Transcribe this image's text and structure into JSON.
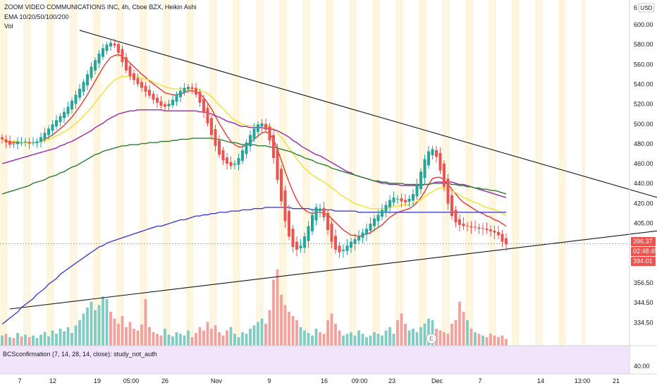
{
  "header": {
    "title": "ZOOM VIDEO COMMUNICATIONS INC, 4h, Cboe BZX, Heikin Ashi",
    "ema_label": "EMA 10/20/50/100/200",
    "vol_label": "Vol"
  },
  "indicator_panel": {
    "label": "BCSconfirmation (7, 14, 28, 14, close): study_not_auth",
    "axis_value": "40.00"
  },
  "event_marker": "E",
  "price_tags": [
    {
      "label": "396.37",
      "color": "#ef5350"
    },
    {
      "label": "02:48:45",
      "color": "#ef5350"
    },
    {
      "label": "394.01",
      "color": "#ef5350"
    }
  ],
  "colors": {
    "up": "#26a69a",
    "down": "#ef5350",
    "vol_up": "#80cbc4",
    "vol_down": "#f4a09c",
    "ema10": "#e53935",
    "ema20": "#f5e12a",
    "ema50": "#9c27b0",
    "ema100": "#2e7d32",
    "ema200": "#3f3fd9",
    "session_bg": "#fff4dc",
    "indicator_bg": "#f1e4fb"
  },
  "chart_data": {
    "type": "candlestick",
    "title": "ZOOM VIDEO COMMUNICATIONS INC, 4h, Cboe BZX, Heikin Ashi",
    "y_axis": {
      "scale": "log",
      "range": [
        334.5,
        616
      ],
      "tick_labels": [
        "600.00",
        "580.00",
        "560.00",
        "540.00",
        "520.00",
        "500.00",
        "480.00",
        "460.00",
        "440.00",
        "420.00",
        "405.00",
        "380.00",
        "368.50",
        "356.50",
        "344.50",
        "334.50"
      ],
      "top_cut_label": "6",
      "currency": "USD"
    },
    "x_axis": {
      "tick_labels": [
        "7",
        "12",
        "19",
        "05:00",
        "26",
        "Nov",
        "9",
        "16",
        "09:00",
        "23",
        "Dec",
        "7",
        "14",
        "13:00",
        "21"
      ]
    },
    "price_series": {
      "close": [
        484,
        481,
        479,
        480,
        482,
        481,
        482,
        480,
        481,
        482,
        486,
        490,
        494,
        498,
        502,
        506,
        510,
        515,
        521,
        527,
        533,
        540,
        548,
        556,
        563,
        570,
        576,
        580,
        582,
        579,
        571,
        561,
        552,
        546,
        542,
        538,
        534,
        530,
        526,
        522,
        519,
        516,
        515,
        518,
        522,
        527,
        531,
        534,
        535,
        533,
        527,
        519,
        509,
        499,
        488,
        478,
        470,
        465,
        462,
        460,
        462,
        467,
        474,
        481,
        488,
        494,
        498,
        499,
        493,
        483,
        467,
        448,
        430,
        414,
        402,
        394,
        392,
        395,
        402,
        410,
        419,
        425,
        424,
        417,
        407,
        398,
        392,
        390,
        392,
        395,
        398,
        400,
        402,
        405,
        408,
        412,
        416,
        419,
        423,
        427,
        431,
        433,
        432,
        430,
        429,
        432,
        436,
        444,
        455,
        466,
        473,
        475,
        468,
        456,
        442,
        428,
        418,
        413,
        411,
        410,
        410,
        409,
        409,
        408,
        408,
        407,
        406,
        405,
        403,
        398,
        396
      ],
      "last": 396.37
    },
    "series": [
      {
        "name": "EMA 10",
        "color": "#e53935",
        "values": [
          484,
          483,
          481,
          481,
          481,
          481,
          481,
          481,
          481,
          481,
          482,
          484,
          486,
          488,
          491,
          494,
          497,
          501,
          505,
          510,
          515,
          521,
          527,
          534,
          541,
          548,
          555,
          561,
          566,
          568,
          569,
          567,
          564,
          560,
          556,
          552,
          548,
          545,
          541,
          538,
          535,
          532,
          529,
          528,
          527,
          527,
          528,
          529,
          531,
          531,
          530,
          528,
          524,
          519,
          513,
          506,
          499,
          493,
          487,
          482,
          479,
          477,
          477,
          479,
          481,
          484,
          487,
          490,
          491,
          489,
          484,
          475,
          465,
          455,
          446,
          438,
          431,
          426,
          423,
          421,
          420,
          421,
          421,
          420,
          419,
          416,
          413,
          410,
          407,
          405,
          403,
          403,
          402,
          403,
          404,
          405,
          407,
          409,
          411,
          414,
          417,
          419,
          421,
          422,
          423,
          424,
          426,
          429,
          433,
          438,
          444,
          449,
          450,
          450,
          448,
          444,
          440,
          436,
          432,
          429,
          427,
          425,
          423,
          421,
          420,
          418,
          417,
          415,
          414,
          412,
          410
        ]
      },
      {
        "name": "EMA 20",
        "color": "#f5e12a",
        "values": [
          484,
          483,
          482,
          482,
          482,
          481,
          481,
          481,
          481,
          481,
          482,
          483,
          484,
          485,
          487,
          489,
          491,
          493,
          496,
          499,
          502,
          506,
          510,
          514,
          519,
          524,
          529,
          534,
          538,
          542,
          544,
          546,
          546,
          546,
          546,
          545,
          544,
          543,
          542,
          540,
          538,
          537,
          535,
          534,
          533,
          533,
          533,
          533,
          533,
          533,
          533,
          532,
          530,
          528,
          525,
          521,
          517,
          513,
          509,
          505,
          502,
          500,
          498,
          497,
          497,
          497,
          497,
          497,
          497,
          496,
          494,
          490,
          486,
          481,
          476,
          471,
          466,
          462,
          458,
          455,
          452,
          450,
          448,
          446,
          444,
          441,
          439,
          436,
          434,
          432,
          430,
          428,
          427,
          426,
          425,
          424,
          424,
          424,
          424,
          424,
          425,
          426,
          426,
          427,
          427,
          427,
          428,
          430,
          431,
          434,
          436,
          438,
          440,
          441,
          441,
          440,
          439,
          437,
          435,
          433,
          432,
          430,
          429,
          428,
          426,
          425,
          424,
          423,
          422,
          420,
          418
        ]
      },
      {
        "name": "EMA 50",
        "color": "#9c27b0",
        "values": [
          462,
          463,
          464,
          465,
          466,
          467,
          468,
          469,
          470,
          471,
          472,
          473,
          474,
          475,
          476,
          478,
          479,
          481,
          482,
          484,
          486,
          488,
          490,
          492,
          495,
          497,
          499,
          502,
          504,
          506,
          508,
          509,
          510,
          511,
          511,
          512,
          512,
          512,
          512,
          512,
          512,
          512,
          511,
          511,
          511,
          511,
          511,
          511,
          511,
          511,
          511,
          510,
          510,
          509,
          508,
          506,
          505,
          503,
          501,
          500,
          499,
          497,
          496,
          496,
          495,
          495,
          495,
          495,
          494,
          494,
          493,
          492,
          490,
          488,
          486,
          483,
          481,
          478,
          476,
          474,
          472,
          470,
          469,
          467,
          465,
          463,
          461,
          459,
          457,
          455,
          454,
          452,
          451,
          450,
          449,
          448,
          447,
          446,
          445,
          445,
          444,
          444,
          444,
          443,
          443,
          443,
          443,
          443,
          443,
          444,
          444,
          445,
          446,
          446,
          446,
          446,
          446,
          445,
          444,
          444,
          443,
          442,
          441,
          440,
          439,
          438,
          437,
          436,
          435,
          434,
          433
        ]
      },
      {
        "name": "EMA 100",
        "color": "#2e7d32",
        "values": [
          436,
          437,
          438,
          439,
          440,
          441,
          442,
          443,
          445,
          446,
          447,
          448,
          450,
          451,
          452,
          454,
          455,
          457,
          459,
          460,
          462,
          464,
          466,
          468,
          470,
          471,
          473,
          474,
          475,
          476,
          477,
          478,
          478,
          479,
          479,
          479,
          480,
          480,
          481,
          481,
          481,
          482,
          482,
          482,
          483,
          483,
          484,
          484,
          484,
          485,
          485,
          485,
          485,
          485,
          485,
          484,
          484,
          483,
          482,
          481,
          481,
          480,
          479,
          479,
          479,
          479,
          478,
          478,
          478,
          477,
          477,
          476,
          475,
          474,
          473,
          472,
          470,
          469,
          467,
          466,
          465,
          463,
          462,
          461,
          460,
          458,
          457,
          456,
          455,
          454,
          453,
          452,
          451,
          450,
          449,
          448,
          447,
          447,
          446,
          446,
          445,
          445,
          445,
          445,
          444,
          444,
          444,
          444,
          444,
          444,
          444,
          445,
          445,
          445,
          445,
          445,
          444,
          444,
          443,
          443,
          442,
          442,
          441,
          441,
          440,
          440,
          439,
          439,
          438,
          437,
          436
        ]
      },
      {
        "name": "EMA 200",
        "color": "#3f3fd9",
        "values": [
          340,
          342,
          344,
          346,
          348,
          351,
          353,
          355,
          357,
          360,
          362,
          364,
          367,
          369,
          371,
          374,
          376,
          378,
          380,
          382,
          384,
          386,
          388,
          390,
          392,
          394,
          395,
          397,
          398,
          399,
          400,
          401,
          402,
          403,
          404,
          405,
          406,
          407,
          408,
          409,
          410,
          410,
          411,
          412,
          413,
          414,
          415,
          415,
          416,
          417,
          418,
          418,
          419,
          419,
          420,
          420,
          421,
          421,
          421,
          422,
          422,
          422,
          423,
          423,
          423,
          424,
          424,
          424,
          425,
          425,
          425,
          425,
          425,
          425,
          425,
          424,
          424,
          424,
          424,
          424,
          423,
          423,
          423,
          423,
          423,
          423,
          422,
          422,
          422,
          422,
          422,
          422,
          421,
          421,
          421,
          421,
          421,
          421,
          421,
          421,
          421,
          421,
          421,
          421,
          421,
          421,
          421,
          421,
          421,
          421,
          421,
          421,
          421,
          421,
          421,
          421,
          421,
          421,
          421,
          421,
          421,
          421,
          421,
          421,
          421,
          421,
          421,
          421,
          421,
          421,
          421
        ]
      }
    ],
    "volume": {
      "values": [
        12,
        14,
        10,
        9,
        15,
        11,
        13,
        10,
        12,
        9,
        13,
        16,
        11,
        18,
        14,
        20,
        17,
        22,
        15,
        24,
        30,
        38,
        45,
        52,
        42,
        48,
        58,
        55,
        40,
        32,
        26,
        35,
        22,
        28,
        20,
        18,
        25,
        55,
        22,
        16,
        14,
        12,
        20,
        13,
        11,
        16,
        14,
        12,
        18,
        10,
        15,
        22,
        18,
        28,
        20,
        24,
        16,
        12,
        18,
        22,
        14,
        10,
        16,
        14,
        20,
        24,
        28,
        32,
        26,
        42,
        78,
        90,
        60,
        48,
        40,
        35,
        30,
        22,
        18,
        15,
        12,
        20,
        16,
        14,
        30,
        38,
        26,
        18,
        12,
        14,
        16,
        12,
        18,
        14,
        10,
        12,
        16,
        14,
        12,
        18,
        22,
        14,
        30,
        38,
        26,
        18,
        20,
        16,
        22,
        26,
        32,
        30,
        20,
        18,
        16,
        14,
        26,
        30,
        52,
        40,
        30,
        20,
        16,
        14,
        12,
        10,
        14,
        12,
        10,
        12,
        8
      ],
      "direction": [
        1,
        0,
        1,
        0,
        1,
        0,
        1,
        0,
        1,
        1,
        1,
        1,
        1,
        1,
        1,
        1,
        1,
        1,
        1,
        1,
        1,
        1,
        1,
        1,
        1,
        1,
        1,
        1,
        0,
        0,
        0,
        0,
        0,
        0,
        0,
        0,
        0,
        0,
        0,
        0,
        0,
        0,
        1,
        1,
        1,
        1,
        1,
        1,
        1,
        0,
        0,
        0,
        0,
        0,
        0,
        0,
        0,
        0,
        0,
        1,
        1,
        1,
        1,
        1,
        1,
        1,
        1,
        1,
        0,
        0,
        0,
        0,
        0,
        0,
        0,
        0,
        0,
        1,
        1,
        1,
        1,
        1,
        0,
        0,
        0,
        0,
        0,
        0,
        1,
        1,
        1,
        1,
        1,
        1,
        1,
        1,
        1,
        1,
        1,
        1,
        1,
        1,
        0,
        0,
        0,
        1,
        1,
        1,
        1,
        1,
        1,
        1,
        0,
        0,
        0,
        0,
        0,
        0,
        0,
        0,
        1,
        0,
        1,
        0,
        1,
        0,
        0,
        0,
        0,
        0,
        0
      ]
    },
    "trendlines": [
      {
        "name": "upper",
        "from": {
          "bar": 20,
          "price": 596
        },
        "to": {
          "bar": 190,
          "price": 414
        }
      },
      {
        "name": "lower",
        "from": {
          "bar": 2,
          "price": 350
        },
        "to": {
          "bar": 190,
          "price": 414
        }
      }
    ]
  }
}
